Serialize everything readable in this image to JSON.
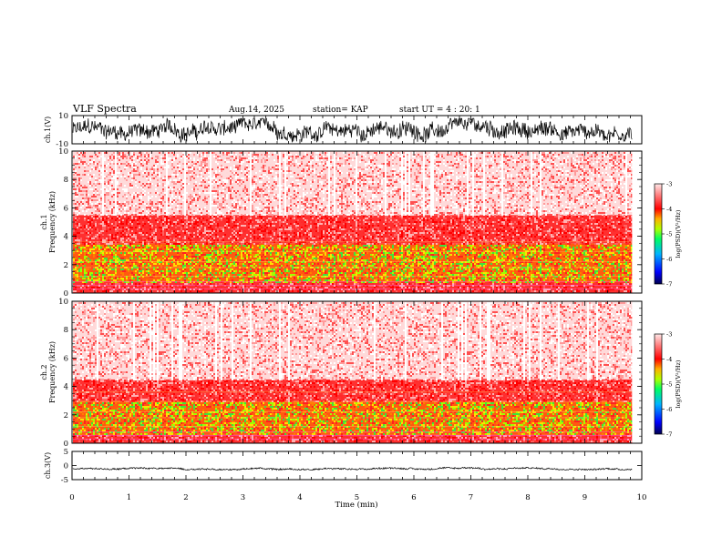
{
  "header": {
    "title": "VLF Spectra",
    "date": "Aug.14, 2025",
    "station": "station= KAP",
    "start": "start UT =  4 : 20: 1"
  },
  "chart_data": [
    {
      "type": "line",
      "name": "ch1-waveform",
      "ylabel": "ch.1(V)",
      "ylim": [
        -10,
        10
      ],
      "yticks": [
        "10",
        "-10"
      ],
      "xlim": [
        0,
        10
      ],
      "data_end": 9.83,
      "envelope": {
        "min": -9,
        "max": 8
      },
      "color": "#000000"
    },
    {
      "type": "heatmap",
      "name": "ch1-spectrogram",
      "ylabel": "ch.1\nFrequency (kHz)",
      "ylim": [
        0,
        10
      ],
      "yticks": [
        "0",
        "2",
        "4",
        "6",
        "8",
        "10"
      ],
      "xlim": [
        0,
        10
      ],
      "data_end": 9.83,
      "dominant_levels": [
        {
          "from": 0,
          "to": 0.8,
          "level": "-3.8"
        },
        {
          "from": 0.8,
          "to": 3.5,
          "level": "-5"
        },
        {
          "from": 3.5,
          "to": 5.5,
          "level": "-3.8"
        },
        {
          "from": 5.5,
          "to": 10,
          "level": "-3.2"
        }
      ],
      "colorbar": {
        "label": "log(PSD)(V²/Hz)",
        "ticks": [
          "-3",
          "-4",
          "-5",
          "-6",
          "-7"
        ],
        "range": [
          -7,
          -3
        ]
      }
    },
    {
      "type": "heatmap",
      "name": "ch2-spectrogram",
      "ylabel": "ch.2\nFrequency (kHz)",
      "ylim": [
        0,
        10
      ],
      "yticks": [
        "0",
        "2",
        "4",
        "6",
        "8",
        "10"
      ],
      "xlim": [
        0,
        10
      ],
      "data_end": 9.83,
      "dominant_levels": [
        {
          "from": 0,
          "to": 0.6,
          "level": "-3.8"
        },
        {
          "from": 0.6,
          "to": 3.0,
          "level": "-5"
        },
        {
          "from": 3.0,
          "to": 4.5,
          "level": "-3.8"
        },
        {
          "from": 4.5,
          "to": 10,
          "level": "-3.2"
        }
      ],
      "colorbar": {
        "label": "log(PSD)(V²/Hz)",
        "ticks": [
          "-3",
          "-4",
          "-5",
          "-6",
          "-7"
        ],
        "range": [
          -7,
          -3
        ]
      }
    },
    {
      "type": "line",
      "name": "ch3-waveform",
      "ylabel": "ch.3(V)",
      "ylim": [
        -5,
        5
      ],
      "yticks": [
        "5",
        "0",
        "-5"
      ],
      "xlim": [
        0,
        10
      ],
      "data_end": 9.83,
      "envelope": {
        "min": -1.6,
        "max": -0.6
      },
      "color": "#000000"
    }
  ],
  "xaxis": {
    "label": "Time (min)",
    "ticks": [
      "0",
      "1",
      "2",
      "3",
      "4",
      "5",
      "6",
      "7",
      "8",
      "9",
      "10"
    ]
  },
  "colors": {
    "colormap": [
      "#000080",
      "#0000ff",
      "#00aaff",
      "#00ff80",
      "#80ff00",
      "#ffff00",
      "#ff8000",
      "#ff0000",
      "#ffffff"
    ],
    "line": "#000000"
  }
}
